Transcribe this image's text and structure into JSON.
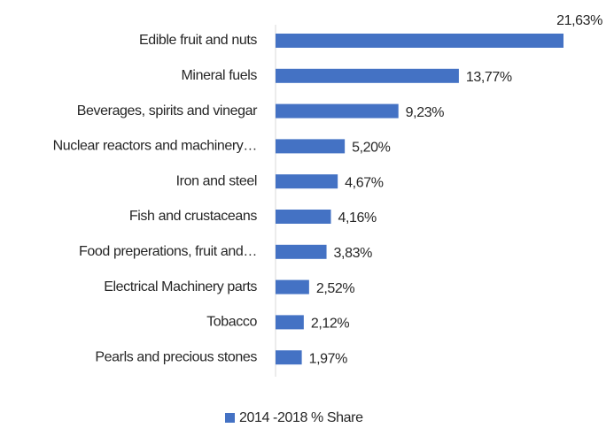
{
  "chart_data": {
    "type": "bar",
    "orientation": "horizontal",
    "categories": [
      "Edible fruit and nuts",
      "Mineral fuels",
      "Beverages, spirits and vinegar",
      "Nuclear reactors and machinery…",
      "Iron and steel",
      "Fish and crustaceans",
      "Food preperations, fruit and…",
      "Electrical Machinery parts",
      "Tobacco",
      "Pearls and precious stones"
    ],
    "series": [
      {
        "name": "2014 -2018 % Share",
        "color": "#4472c4",
        "values": [
          21.63,
          13.77,
          9.23,
          5.2,
          4.67,
          4.16,
          3.83,
          2.52,
          2.12,
          1.97
        ],
        "value_labels": [
          "21,63%",
          "13,77%",
          "9,23%",
          "5,20%",
          "4,67%",
          "4,16%",
          "3,83%",
          "2,52%",
          "2,12%",
          "1,97%"
        ]
      }
    ],
    "legend": "bottom"
  }
}
